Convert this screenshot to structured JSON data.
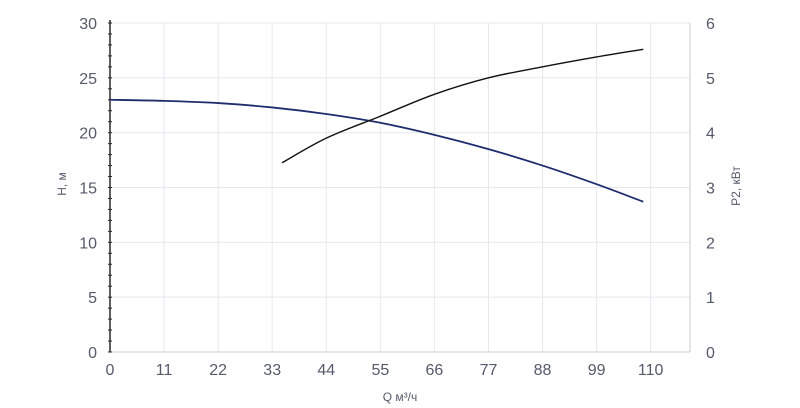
{
  "chart_data": {
    "type": "line",
    "title": "",
    "xlabel": "Q м³/ч",
    "ylabel": "H, м",
    "y2label": "P2, кВт",
    "xlim": [
      0,
      118
    ],
    "ylim": [
      0,
      30
    ],
    "y2lim": [
      0,
      6
    ],
    "xticks": [
      "0",
      "11",
      "22",
      "33",
      "44",
      "55",
      "66",
      "77",
      "88",
      "99",
      "110"
    ],
    "yticks": [
      "0",
      "5",
      "10",
      "15",
      "20",
      "25",
      "30"
    ],
    "y2ticks": [
      "0",
      "1",
      "2",
      "3",
      "4",
      "5",
      "6"
    ],
    "grid": true,
    "colors": {
      "head": "#1f2d6e",
      "power": "#111111"
    },
    "series": [
      {
        "name": "",
        "axis": "left",
        "x": [
          0,
          11,
          22,
          33,
          44,
          55,
          66,
          77,
          88,
          99,
          108.5
        ],
        "values": [
          23.0,
          22.9,
          22.7,
          22.3,
          21.7,
          20.9,
          19.8,
          18.5,
          17.0,
          15.3,
          13.7
        ]
      },
      {
        "name": "",
        "axis": "right",
        "x": [
          35,
          44,
          55,
          66,
          77,
          88,
          99,
          108.5
        ],
        "values": [
          3.45,
          3.9,
          4.3,
          4.7,
          5.0,
          5.2,
          5.38,
          5.52
        ]
      }
    ]
  }
}
